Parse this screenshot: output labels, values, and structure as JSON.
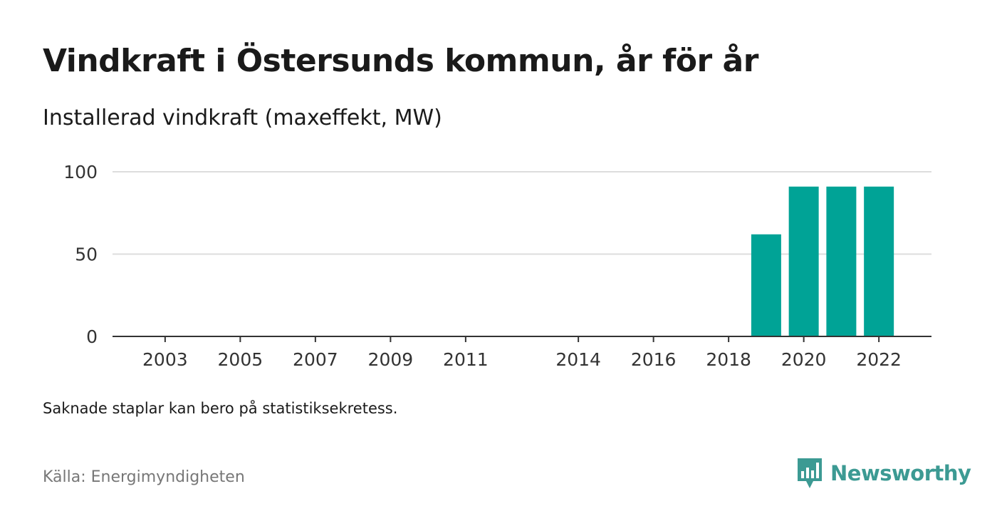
{
  "title": "Vindkraft i Östersunds kommun, år för år",
  "subtitle": "Installerad vindkraft (maxeffekt, MW)",
  "note": "Saknade staplar kan bero på statistiksekretess.",
  "source": "Källa: Energimyndigheten",
  "logo": {
    "text": "Newsworthy",
    "icon": "bar-chart-icon",
    "color": "#3c9a93"
  },
  "colors": {
    "bar": "#00a396",
    "grid": "#dddddd",
    "axis": "#333333"
  },
  "chart_data": {
    "type": "bar",
    "categories": [
      "2019",
      "2020",
      "2021",
      "2022"
    ],
    "values": [
      62,
      91,
      91,
      91
    ],
    "x_ticks": [
      "2003",
      "2005",
      "2007",
      "2009",
      "2011",
      "2014",
      "2016",
      "2018",
      "2020",
      "2022"
    ],
    "x_range": [
      2001.6,
      2023.4
    ],
    "y_ticks": [
      0,
      50,
      100
    ],
    "ylim": [
      0,
      100
    ],
    "grid": true,
    "legend": "none"
  }
}
